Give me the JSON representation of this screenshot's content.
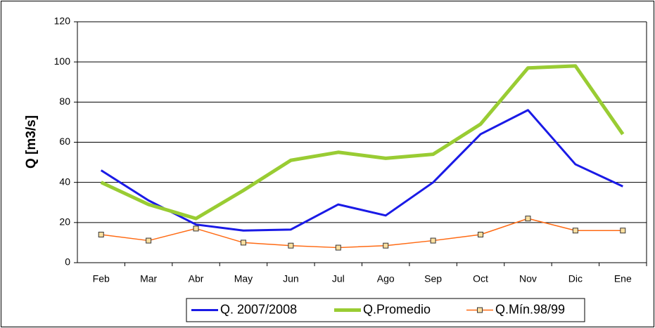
{
  "chart_data": {
    "type": "line",
    "y_label": "Q [m3/s]",
    "categories": [
      "Feb",
      "Mar",
      "Abr",
      "May",
      "Jun",
      "Jul",
      "Ago",
      "Sep",
      "Oct",
      "Nov",
      "Dic",
      "Ene"
    ],
    "series": [
      {
        "name": "Q. 2007/2008",
        "color": "#1a1ae6",
        "width": 3,
        "marker": false,
        "values": [
          46,
          31,
          19,
          16,
          16.5,
          29,
          23.5,
          40,
          64,
          76,
          49,
          38
        ]
      },
      {
        "name": "Q.Promedio",
        "color": "#99cc33",
        "width": 5,
        "marker": false,
        "values": [
          40,
          29,
          22,
          36,
          51,
          55,
          52,
          54,
          69,
          97,
          98,
          64
        ]
      },
      {
        "name": "Q.Mín.98/99",
        "color": "#ff6a13",
        "width": 1.5,
        "marker": true,
        "values": [
          14,
          11,
          17,
          10,
          8.5,
          7.5,
          8.5,
          11,
          14,
          22,
          16,
          16
        ]
      }
    ],
    "ylim": [
      0,
      120
    ],
    "yticks": [
      0,
      20,
      40,
      60,
      80,
      100,
      120
    ],
    "grid": true,
    "legend": "bottom"
  }
}
